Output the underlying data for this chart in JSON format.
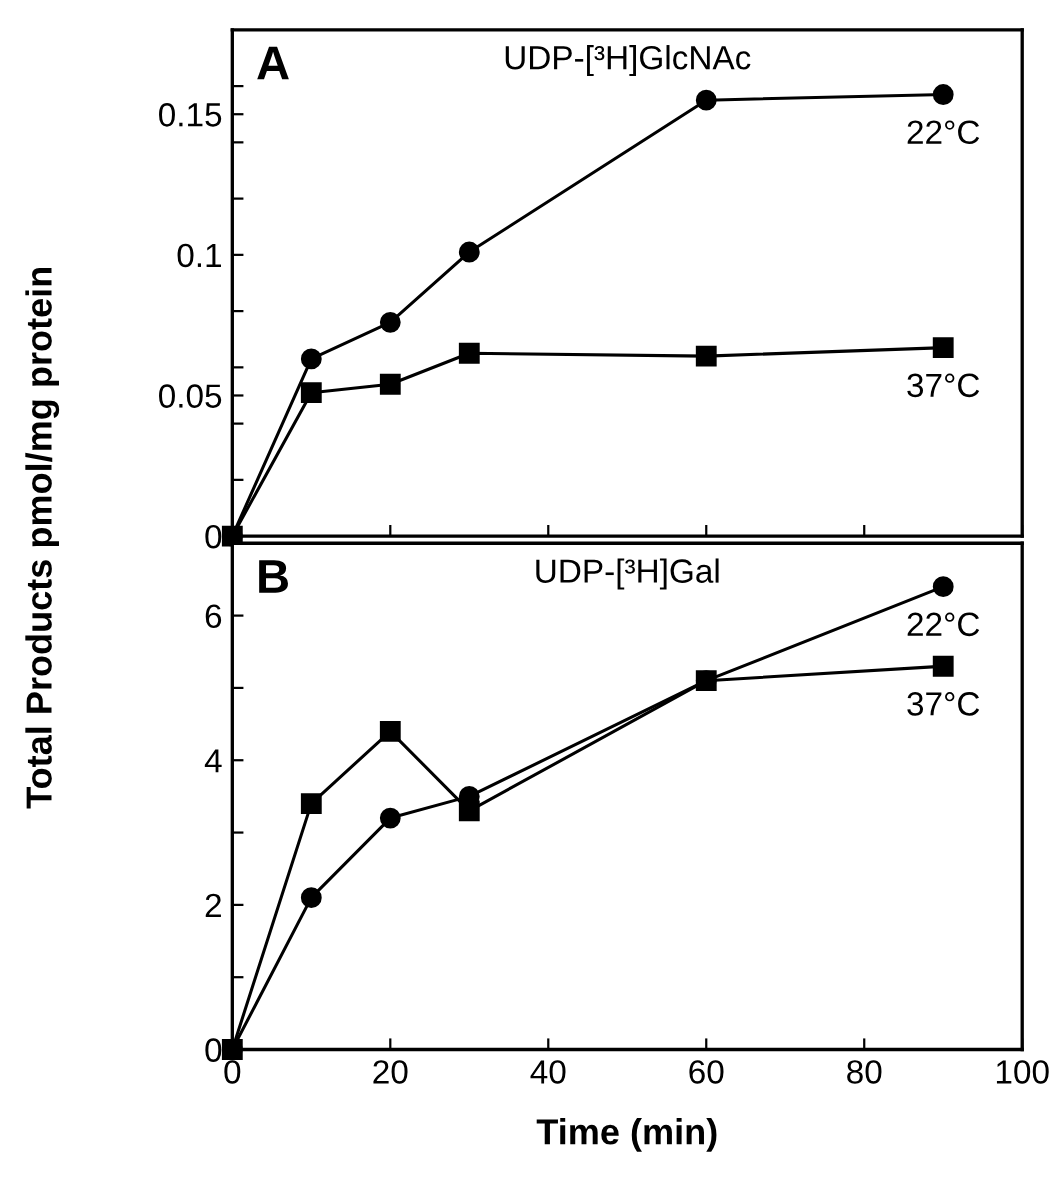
{
  "chart_data": [
    {
      "type": "line",
      "ylabel": "Total Products pmol/mg protein",
      "annotations": [
        "A",
        "UDP-[³H]GlcNAc"
      ],
      "x": [
        0,
        10,
        20,
        30,
        60,
        90
      ],
      "series": [
        {
          "name": "22°C",
          "color": "#000000",
          "marker": "circle",
          "values": [
            0,
            0.063,
            0.076,
            0.101,
            0.155,
            0.157
          ]
        },
        {
          "name": "37°C",
          "color": "#000000",
          "marker": "square",
          "values": [
            0,
            0.051,
            0.054,
            0.065,
            0.064,
            0.067
          ]
        }
      ],
      "xlim": [
        0,
        100
      ],
      "xticks": [
        0,
        20,
        40,
        60,
        80,
        100
      ],
      "ylim": [
        0,
        0.18
      ],
      "yticks": [
        0,
        0.05,
        0.1,
        0.15,
        {
          "value": 0.02,
          "label": null
        },
        {
          "value": 0.04,
          "label": null
        },
        {
          "value": 0.06,
          "label": null
        },
        {
          "value": 0.08,
          "label": null
        },
        {
          "value": 0.12,
          "label": null
        },
        {
          "value": 0.14,
          "label": null
        },
        {
          "value": 0.16,
          "label": null
        }
      ],
      "tick_labels": "y",
      "legend": false,
      "grid": false
    },
    {
      "type": "line",
      "xlabel": "Time (min)",
      "annotations": [
        "B",
        "UDP-[³H]Gal"
      ],
      "x": [
        0,
        10,
        20,
        30,
        60,
        90
      ],
      "series": [
        {
          "name": "22°C",
          "color": "#000000",
          "marker": "circle",
          "values": [
            0,
            2.1,
            3.2,
            3.5,
            5.1,
            6.4
          ]
        },
        {
          "name": "37°C",
          "color": "#000000",
          "marker": "square",
          "values": [
            0,
            3.4,
            4.4,
            3.3,
            5.1,
            5.3
          ]
        }
      ],
      "xlim": [
        0,
        100
      ],
      "xticks": [
        0,
        20,
        40,
        60,
        80,
        100
      ],
      "ylim": [
        0,
        7
      ],
      "yticks": [
        0,
        2,
        4,
        6,
        {
          "value": 1,
          "label": null
        },
        {
          "value": 3,
          "label": null
        },
        {
          "value": 5,
          "label": null
        }
      ],
      "legend": false,
      "grid": false
    }
  ]
}
